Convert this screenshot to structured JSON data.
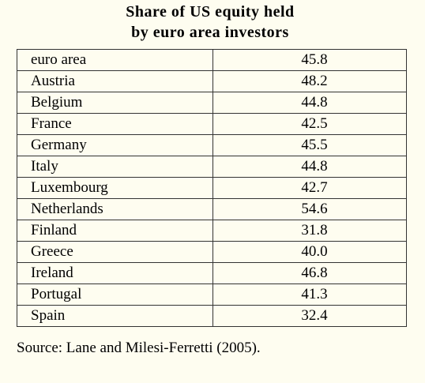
{
  "chart_data": {
    "type": "table",
    "title": [
      "Share of US equity held",
      "by euro area investors"
    ],
    "rows": [
      {
        "label": "euro area",
        "value": "45.8"
      },
      {
        "label": "Austria",
        "value": "48.2"
      },
      {
        "label": "Belgium",
        "value": "44.8"
      },
      {
        "label": "France",
        "value": "42.5"
      },
      {
        "label": "Germany",
        "value": "45.5"
      },
      {
        "label": "Italy",
        "value": "44.8"
      },
      {
        "label": "Luxembourg",
        "value": "42.7"
      },
      {
        "label": "Netherlands",
        "value": "54.6"
      },
      {
        "label": "Finland",
        "value": "31.8"
      },
      {
        "label": "Greece",
        "value": "40.0"
      },
      {
        "label": "Ireland",
        "value": "46.8"
      },
      {
        "label": "Portugal",
        "value": "41.3"
      },
      {
        "label": "Spain",
        "value": "32.4"
      }
    ],
    "source": "Source: Lane and Milesi-Ferretti (2005)."
  }
}
